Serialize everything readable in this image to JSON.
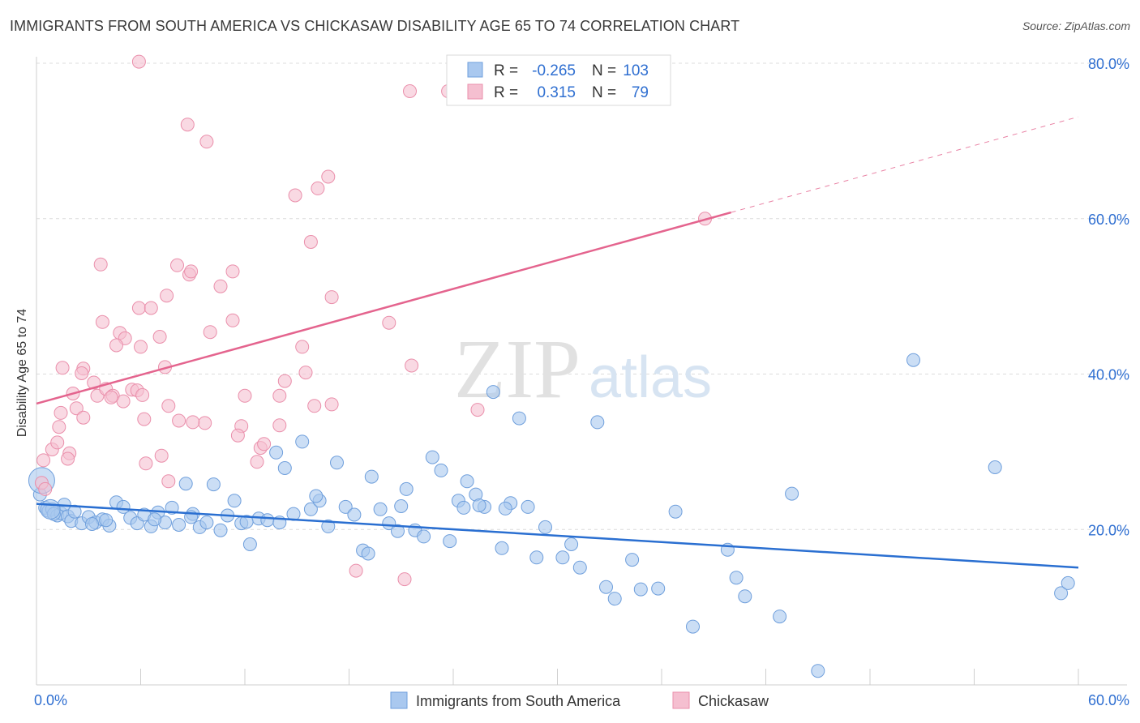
{
  "header": {
    "title": "IMMIGRANTS FROM SOUTH AMERICA VS CHICKASAW DISABILITY AGE 65 TO 74 CORRELATION CHART",
    "source": "Source: ZipAtlas.com"
  },
  "watermark": {
    "zip": "ZIP",
    "atlas": "atlas"
  },
  "legend_box": {
    "rows": [
      {
        "r_label": "R =",
        "r_value": "-0.265",
        "n_label": "N =",
        "n_value": "103"
      },
      {
        "r_label": "R =",
        "r_value": "0.315",
        "n_label": "N =",
        "n_value": "79"
      }
    ]
  },
  "colors": {
    "blue_fill": "#a9c8ef",
    "blue_stroke": "#6f9fdc",
    "blue_line": "#2a6fd1",
    "pink_fill": "#f5bfd0",
    "pink_stroke": "#ea8fab",
    "pink_line": "#e4648e",
    "value_text": "#2f6fd1",
    "grid": "#dcdcdc"
  },
  "chart_data": {
    "type": "scatter",
    "title": "IMMIGRANTS FROM SOUTH AMERICA VS CHICKASAW DISABILITY AGE 65 TO 74 CORRELATION CHART",
    "xlabel": "",
    "ylabel": "Disability Age 65 to 74",
    "xlim": [
      0,
      60
    ],
    "ylim": [
      0,
      80
    ],
    "x_tick_labels": [
      "0.0%",
      "60.0%"
    ],
    "y_tick_labels": [
      "20.0%",
      "40.0%",
      "60.0%",
      "80.0%"
    ],
    "y_ticks": [
      20,
      40,
      60,
      80
    ],
    "grid": true,
    "legend_position": "bottom",
    "series": [
      {
        "name": "Immigrants from South America",
        "color": "#a9c8ef",
        "r": -0.265,
        "n": 103,
        "trend": {
          "x": [
            0,
            60
          ],
          "y": [
            23.3,
            15.1
          ],
          "dashed_from": null
        },
        "points": [
          [
            0.2,
            24.5
          ],
          [
            0.5,
            22.8
          ],
          [
            0.7,
            22.4
          ],
          [
            0.9,
            22.6
          ],
          [
            1.2,
            21.8
          ],
          [
            1.4,
            22.1
          ],
          [
            1.6,
            23.2
          ],
          [
            1.8,
            21.7
          ],
          [
            2.0,
            21.1
          ],
          [
            2.2,
            22.3
          ],
          [
            2.6,
            20.8
          ],
          [
            3.0,
            21.6
          ],
          [
            3.4,
            20.9
          ],
          [
            3.8,
            21.3
          ],
          [
            4.2,
            20.5
          ],
          [
            4.6,
            23.5
          ],
          [
            5.0,
            22.9
          ],
          [
            5.4,
            21.5
          ],
          [
            5.8,
            20.8
          ],
          [
            6.2,
            21.9
          ],
          [
            6.6,
            20.4
          ],
          [
            7.0,
            22.2
          ],
          [
            7.4,
            20.9
          ],
          [
            7.8,
            22.8
          ],
          [
            8.2,
            20.6
          ],
          [
            8.6,
            25.9
          ],
          [
            9.0,
            22.0
          ],
          [
            9.4,
            20.3
          ],
          [
            9.8,
            20.9
          ],
          [
            10.2,
            25.8
          ],
          [
            10.6,
            19.9
          ],
          [
            11.0,
            21.8
          ],
          [
            11.4,
            23.7
          ],
          [
            11.8,
            20.8
          ],
          [
            12.3,
            18.1
          ],
          [
            12.8,
            21.4
          ],
          [
            13.3,
            21.2
          ],
          [
            13.8,
            29.9
          ],
          [
            14.3,
            27.9
          ],
          [
            14.8,
            22.0
          ],
          [
            15.3,
            31.3
          ],
          [
            15.8,
            22.6
          ],
          [
            16.3,
            23.7
          ],
          [
            16.8,
            20.4
          ],
          [
            17.3,
            28.6
          ],
          [
            17.8,
            22.9
          ],
          [
            18.3,
            21.9
          ],
          [
            18.8,
            17.3
          ],
          [
            19.3,
            26.8
          ],
          [
            19.8,
            22.6
          ],
          [
            20.3,
            20.8
          ],
          [
            20.8,
            19.8
          ],
          [
            21.3,
            25.2
          ],
          [
            21.8,
            19.9
          ],
          [
            22.3,
            19.1
          ],
          [
            22.8,
            29.3
          ],
          [
            23.3,
            27.6
          ],
          [
            23.8,
            18.5
          ],
          [
            24.3,
            23.7
          ],
          [
            24.8,
            26.2
          ],
          [
            25.3,
            24.5
          ],
          [
            25.8,
            22.9
          ],
          [
            26.3,
            37.7
          ],
          [
            26.8,
            17.6
          ],
          [
            27.3,
            23.4
          ],
          [
            27.8,
            34.3
          ],
          [
            28.3,
            22.9
          ],
          [
            28.8,
            16.4
          ],
          [
            29.3,
            20.3
          ],
          [
            30.3,
            16.4
          ],
          [
            30.8,
            18.1
          ],
          [
            31.3,
            15.1
          ],
          [
            32.3,
            33.8
          ],
          [
            32.8,
            12.6
          ],
          [
            33.3,
            11.1
          ],
          [
            34.3,
            16.1
          ],
          [
            34.8,
            12.3
          ],
          [
            35.8,
            12.4
          ],
          [
            36.8,
            22.3
          ],
          [
            37.8,
            7.5
          ],
          [
            39.8,
            17.4
          ],
          [
            40.3,
            13.8
          ],
          [
            40.8,
            11.4
          ],
          [
            42.8,
            8.8
          ],
          [
            43.5,
            24.6
          ],
          [
            45.0,
            1.8
          ],
          [
            50.5,
            41.8
          ],
          [
            55.2,
            28.0
          ],
          [
            59.0,
            11.8
          ],
          [
            59.4,
            13.1
          ],
          [
            1.0,
            22.0
          ],
          [
            3.2,
            20.7
          ],
          [
            6.8,
            21.3
          ],
          [
            12.1,
            21.0
          ],
          [
            16.1,
            24.3
          ],
          [
            19.1,
            16.9
          ],
          [
            24.6,
            22.8
          ],
          [
            25.5,
            23.1
          ],
          [
            27.0,
            22.7
          ],
          [
            8.9,
            21.6
          ],
          [
            4.0,
            21.2
          ],
          [
            14.0,
            20.9
          ],
          [
            21.0,
            23.0
          ]
        ]
      },
      {
        "name": "Chickasaw",
        "color": "#f5bfd0",
        "r": 0.315,
        "n": 79,
        "trend": {
          "x": [
            0,
            60
          ],
          "y": [
            36.2,
            73.1
          ],
          "dashed_from": 40.0
        },
        "points": [
          [
            5.9,
            80.2
          ],
          [
            21.5,
            76.4
          ],
          [
            23.7,
            76.4
          ],
          [
            8.7,
            72.1
          ],
          [
            9.8,
            69.9
          ],
          [
            14.9,
            63.0
          ],
          [
            15.8,
            57.0
          ],
          [
            16.2,
            63.9
          ],
          [
            16.8,
            65.4
          ],
          [
            17.0,
            49.9
          ],
          [
            8.1,
            54.0
          ],
          [
            8.8,
            52.8
          ],
          [
            8.9,
            53.2
          ],
          [
            10.6,
            51.3
          ],
          [
            11.3,
            53.2
          ],
          [
            3.7,
            54.1
          ],
          [
            5.9,
            48.5
          ],
          [
            6.6,
            48.5
          ],
          [
            7.5,
            50.1
          ],
          [
            3.8,
            46.7
          ],
          [
            4.8,
            45.3
          ],
          [
            10.0,
            45.4
          ],
          [
            11.3,
            46.9
          ],
          [
            20.3,
            46.6
          ],
          [
            21.6,
            41.1
          ],
          [
            7.1,
            44.8
          ],
          [
            7.4,
            40.9
          ],
          [
            5.1,
            44.6
          ],
          [
            4.6,
            43.7
          ],
          [
            6.0,
            43.5
          ],
          [
            14.3,
            39.1
          ],
          [
            15.3,
            43.5
          ],
          [
            15.5,
            40.2
          ],
          [
            1.5,
            40.8
          ],
          [
            2.7,
            40.7
          ],
          [
            2.6,
            40.1
          ],
          [
            3.3,
            38.9
          ],
          [
            3.5,
            37.2
          ],
          [
            4.0,
            38.1
          ],
          [
            4.4,
            37.2
          ],
          [
            5.0,
            36.5
          ],
          [
            5.5,
            38.0
          ],
          [
            5.8,
            37.9
          ],
          [
            6.1,
            37.3
          ],
          [
            2.1,
            37.5
          ],
          [
            2.3,
            35.6
          ],
          [
            2.7,
            34.4
          ],
          [
            1.4,
            35.0
          ],
          [
            1.3,
            33.2
          ],
          [
            0.9,
            30.3
          ],
          [
            1.2,
            31.2
          ],
          [
            7.6,
            35.9
          ],
          [
            8.2,
            34.0
          ],
          [
            9.7,
            33.7
          ],
          [
            11.8,
            33.3
          ],
          [
            11.6,
            32.1
          ],
          [
            12.9,
            30.5
          ],
          [
            13.1,
            31.0
          ],
          [
            14.0,
            33.4
          ],
          [
            12.7,
            28.7
          ],
          [
            6.2,
            34.2
          ],
          [
            6.3,
            28.5
          ],
          [
            7.2,
            29.5
          ],
          [
            7.6,
            26.2
          ],
          [
            1.9,
            29.8
          ],
          [
            1.8,
            29.1
          ],
          [
            0.4,
            28.9
          ],
          [
            0.3,
            26.0
          ],
          [
            0.5,
            25.2
          ],
          [
            9.0,
            33.8
          ],
          [
            16.0,
            35.9
          ],
          [
            17.0,
            36.1
          ],
          [
            25.4,
            35.4
          ],
          [
            14.0,
            37.2
          ],
          [
            4.3,
            37.0
          ],
          [
            18.4,
            14.7
          ],
          [
            21.2,
            13.6
          ],
          [
            38.5,
            60.0
          ],
          [
            12.0,
            37.2
          ]
        ]
      }
    ]
  },
  "bottom_legend": {
    "items": [
      {
        "label": "Immigrants from South America"
      },
      {
        "label": "Chickasaw"
      }
    ]
  }
}
